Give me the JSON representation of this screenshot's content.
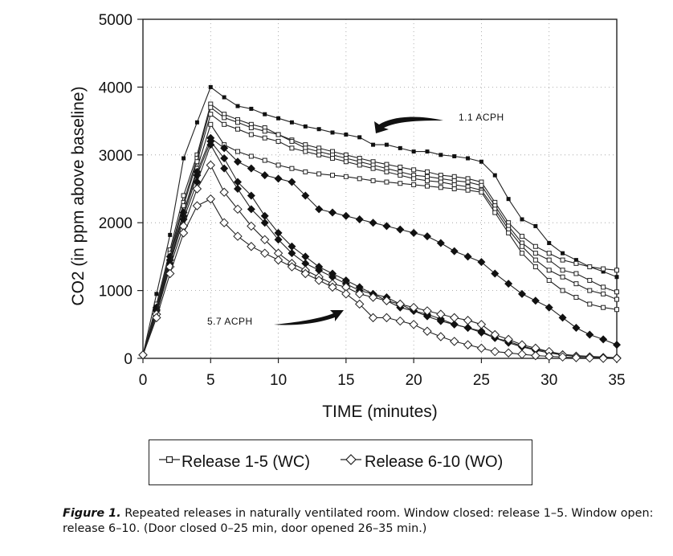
{
  "chart_data": {
    "type": "line",
    "xlabel": "TIME (minutes)",
    "ylabel": "CO2 (in ppm above baseline)",
    "xlim": [
      0,
      35
    ],
    "ylim": [
      0,
      5000
    ],
    "xticks": [
      0,
      5,
      10,
      15,
      20,
      25,
      30,
      35
    ],
    "yticks": [
      0,
      1000,
      2000,
      3000,
      4000,
      5000
    ],
    "grid": "dotted",
    "legend_position": "below",
    "annotations": [
      "1.1 ACPH",
      "5.7 ACPH"
    ],
    "series": [
      {
        "group": "WC",
        "marker": "filled-square",
        "x": [
          0,
          1,
          2,
          3,
          4,
          5,
          6,
          7,
          8,
          9,
          10,
          11,
          12,
          13,
          14,
          15,
          16,
          17,
          18,
          19,
          20,
          21,
          22,
          23,
          24,
          25,
          26,
          27,
          28,
          29,
          30,
          31,
          32,
          33,
          34,
          35
        ],
        "values": [
          50,
          950,
          1820,
          2950,
          3480,
          4000,
          3850,
          3720,
          3680,
          3600,
          3540,
          3480,
          3420,
          3380,
          3330,
          3300,
          3260,
          3150,
          3150,
          3100,
          3050,
          3050,
          3000,
          2980,
          2950,
          2900,
          2700,
          2350,
          2050,
          1950,
          1700,
          1550,
          1450,
          1350,
          1280,
          1200
        ]
      },
      {
        "group": "WC",
        "marker": "open-square",
        "x": [
          0,
          1,
          2,
          3,
          4,
          5,
          6,
          7,
          8,
          9,
          10,
          11,
          12,
          13,
          14,
          15,
          16,
          17,
          18,
          19,
          20,
          21,
          22,
          23,
          24,
          25,
          26,
          27,
          28,
          29,
          30,
          31,
          32,
          33,
          34,
          35
        ],
        "values": [
          50,
          800,
          1600,
          2400,
          3000,
          3750,
          3600,
          3520,
          3450,
          3400,
          3300,
          3220,
          3150,
          3100,
          3050,
          3000,
          2950,
          2900,
          2860,
          2820,
          2780,
          2750,
          2700,
          2680,
          2650,
          2600,
          2300,
          2000,
          1800,
          1650,
          1550,
          1450,
          1400,
          1350,
          1320,
          1300
        ]
      },
      {
        "group": "WC",
        "marker": "open-square",
        "x": [
          0,
          1,
          2,
          3,
          4,
          5,
          6,
          7,
          8,
          9,
          10,
          11,
          12,
          13,
          14,
          15,
          16,
          17,
          18,
          19,
          20,
          21,
          22,
          23,
          24,
          25,
          26,
          27,
          28,
          29,
          30,
          31,
          32,
          33,
          34,
          35
        ],
        "values": [
          50,
          750,
          1550,
          2300,
          2950,
          3700,
          3550,
          3480,
          3400,
          3350,
          3300,
          3200,
          3100,
          3050,
          3000,
          2950,
          2900,
          2850,
          2800,
          2750,
          2700,
          2680,
          2650,
          2620,
          2600,
          2550,
          2250,
          1950,
          1700,
          1550,
          1450,
          1300,
          1250,
          1150,
          1050,
          980
        ]
      },
      {
        "group": "WC",
        "marker": "open-square",
        "x": [
          0,
          1,
          2,
          3,
          4,
          5,
          6,
          7,
          8,
          9,
          10,
          11,
          12,
          13,
          14,
          15,
          16,
          17,
          18,
          19,
          20,
          21,
          22,
          23,
          24,
          25,
          26,
          27,
          28,
          29,
          30,
          31,
          32,
          33,
          34,
          35
        ],
        "values": [
          50,
          700,
          1500,
          2250,
          2900,
          3600,
          3450,
          3380,
          3300,
          3250,
          3200,
          3100,
          3050,
          3000,
          2950,
          2900,
          2850,
          2800,
          2750,
          2700,
          2650,
          2620,
          2600,
          2560,
          2530,
          2480,
          2200,
          1900,
          1650,
          1450,
          1300,
          1200,
          1100,
          1000,
          950,
          870
        ]
      },
      {
        "group": "WC",
        "marker": "open-square",
        "x": [
          0,
          1,
          2,
          3,
          4,
          5,
          6,
          7,
          8,
          9,
          10,
          11,
          12,
          13,
          14,
          15,
          16,
          17,
          18,
          19,
          20,
          21,
          22,
          23,
          24,
          25,
          26,
          27,
          28,
          29,
          30,
          31,
          32,
          33,
          34,
          35
        ],
        "values": [
          50,
          650,
          1400,
          2150,
          2800,
          3450,
          3150,
          3050,
          2980,
          2920,
          2850,
          2800,
          2750,
          2720,
          2700,
          2680,
          2650,
          2620,
          2600,
          2580,
          2560,
          2540,
          2520,
          2500,
          2480,
          2450,
          2150,
          1850,
          1550,
          1350,
          1150,
          1000,
          900,
          800,
          750,
          720
        ]
      },
      {
        "group": "WO",
        "marker": "filled-diamond",
        "x": [
          0,
          1,
          2,
          3,
          4,
          5,
          6,
          7,
          8,
          9,
          10,
          11,
          12,
          13,
          14,
          15,
          16,
          17,
          18,
          19,
          20,
          21,
          22,
          23,
          24,
          25,
          26,
          27,
          28,
          29,
          30,
          31,
          32,
          33,
          34,
          35
        ],
        "values": [
          50,
          750,
          1500,
          2150,
          2750,
          3250,
          3100,
          2900,
          2800,
          2700,
          2650,
          2600,
          2400,
          2200,
          2150,
          2100,
          2050,
          2000,
          1950,
          1900,
          1850,
          1800,
          1700,
          1580,
          1500,
          1420,
          1250,
          1100,
          950,
          850,
          750,
          600,
          450,
          350,
          280,
          200
        ]
      },
      {
        "group": "WO",
        "marker": "filled-diamond",
        "x": [
          0,
          1,
          2,
          3,
          4,
          5,
          6,
          7,
          8,
          9,
          10,
          11,
          12,
          13,
          14,
          15,
          16,
          17,
          18,
          19,
          20,
          21,
          22,
          23,
          24,
          25,
          26,
          27,
          28,
          29,
          30,
          31,
          32,
          33,
          34,
          35
        ],
        "values": [
          50,
          720,
          1450,
          2100,
          2700,
          3200,
          2950,
          2600,
          2400,
          2100,
          1850,
          1650,
          1500,
          1350,
          1250,
          1150,
          1050,
          950,
          850,
          750,
          700,
          650,
          580,
          500,
          450,
          400,
          300,
          250,
          180,
          130,
          100,
          60,
          40,
          30,
          20,
          10
        ]
      },
      {
        "group": "WO",
        "marker": "filled-diamond",
        "x": [
          0,
          1,
          2,
          3,
          4,
          5,
          6,
          7,
          8,
          9,
          10,
          11,
          12,
          13,
          14,
          15,
          16,
          17,
          18,
          19,
          20,
          21,
          22,
          23,
          24,
          25,
          26,
          27,
          28,
          29,
          30,
          31,
          32,
          33,
          34,
          35
        ],
        "values": [
          50,
          700,
          1400,
          2050,
          2600,
          3150,
          2800,
          2500,
          2200,
          2000,
          1750,
          1550,
          1400,
          1300,
          1200,
          1100,
          1000,
          950,
          900,
          800,
          700,
          620,
          550,
          500,
          450,
          380,
          300,
          230,
          170,
          120,
          80,
          50,
          30,
          20,
          10,
          5
        ]
      },
      {
        "group": "WO",
        "marker": "open-diamond",
        "x": [
          0,
          1,
          2,
          3,
          4,
          5,
          6,
          7,
          8,
          9,
          10,
          11,
          12,
          13,
          14,
          15,
          16,
          17,
          18,
          19,
          20,
          21,
          22,
          23,
          24,
          25,
          26,
          27,
          28,
          29,
          30,
          31,
          32,
          33,
          34,
          35
        ],
        "values": [
          50,
          650,
          1350,
          1950,
          2500,
          2850,
          2450,
          2200,
          1950,
          1750,
          1550,
          1400,
          1300,
          1200,
          1100,
          1050,
          950,
          900,
          850,
          800,
          750,
          700,
          650,
          600,
          560,
          500,
          350,
          280,
          200,
          150,
          100,
          50,
          30,
          20,
          10,
          5
        ]
      },
      {
        "group": "WO",
        "marker": "open-diamond",
        "x": [
          0,
          1,
          2,
          3,
          4,
          5,
          6,
          7,
          8,
          9,
          10,
          11,
          12,
          13,
          14,
          15,
          16,
          17,
          18,
          19,
          20,
          21,
          22,
          23,
          24,
          25,
          26,
          27,
          28,
          29,
          30,
          31,
          32,
          33,
          34,
          35
        ],
        "values": [
          50,
          600,
          1250,
          1850,
          2250,
          2350,
          2000,
          1800,
          1650,
          1550,
          1450,
          1350,
          1250,
          1150,
          1050,
          950,
          800,
          600,
          600,
          550,
          500,
          400,
          320,
          250,
          200,
          150,
          100,
          80,
          60,
          40,
          30,
          20,
          10,
          5,
          0,
          0
        ]
      }
    ]
  },
  "legend": {
    "wc_label": "Release 1-5 (WC)",
    "wo_label": "Release 6-10 (WO)"
  },
  "caption": {
    "lead": "Figure 1.",
    "text": "Repeated releases in naturally ventilated room. Window closed: release 1–5. Window open: release 6–10. (Door closed 0–25 min, door opened 26–35 min.)"
  }
}
